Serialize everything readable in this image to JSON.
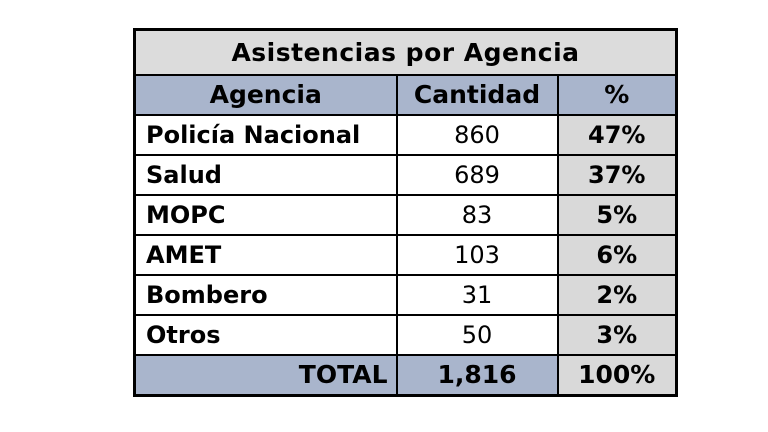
{
  "table": {
    "title": "Asistencias por Agencia",
    "columns": [
      "Agencia",
      "Cantidad",
      "%"
    ],
    "rows": [
      {
        "agencia": "Policía Nacional",
        "cantidad": "860",
        "pct": "47%"
      },
      {
        "agencia": "Salud",
        "cantidad": "689",
        "pct": "37%"
      },
      {
        "agencia": "MOPC",
        "cantidad": "83",
        "pct": "5%"
      },
      {
        "agencia": "AMET",
        "cantidad": "103",
        "pct": "6%"
      },
      {
        "agencia": "Bombero",
        "cantidad": "31",
        "pct": "2%"
      },
      {
        "agencia": "Otros",
        "cantidad": "50",
        "pct": "3%"
      }
    ],
    "total": {
      "label": "TOTAL",
      "cantidad": "1,816",
      "pct": "100%"
    }
  },
  "colors": {
    "title_bg": "#DCDCDC",
    "header_bg": "#A9B5CC",
    "pct_bg": "#D9D9D9",
    "total_bg": "#A9B5CC",
    "border": "#000000",
    "text": "#000000",
    "page_bg": "#FFFFFF"
  },
  "chart_data": {
    "type": "table",
    "title": "Asistencias por Agencia",
    "columns": [
      "Agencia",
      "Cantidad",
      "%"
    ],
    "rows": [
      [
        "Policía Nacional",
        860,
        "47%"
      ],
      [
        "Salud",
        689,
        "37%"
      ],
      [
        "MOPC",
        83,
        "5%"
      ],
      [
        "AMET",
        103,
        "6%"
      ],
      [
        "Bombero",
        31,
        "2%"
      ],
      [
        "Otros",
        50,
        "3%"
      ]
    ],
    "total_row": [
      "TOTAL",
      1816,
      "100%"
    ]
  }
}
